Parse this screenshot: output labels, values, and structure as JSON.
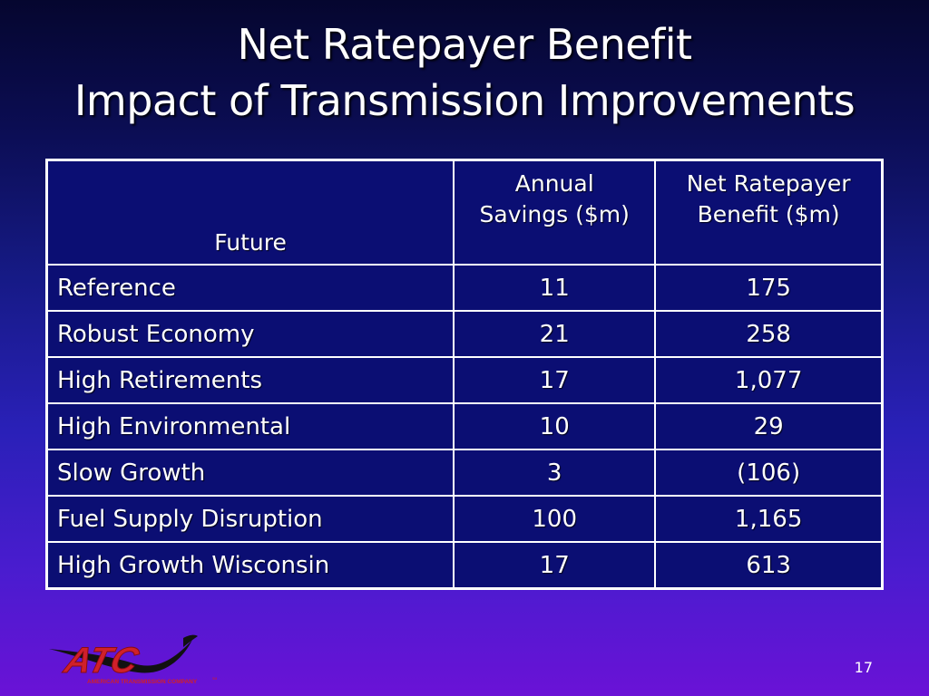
{
  "slide": {
    "title_line1": "Net Ratepayer Benefit",
    "title_line2": "Impact of Transmission Improvements",
    "page_number": "17"
  },
  "table": {
    "headers": {
      "future": "Future",
      "savings_line1": "Annual",
      "savings_line2": "Savings ($m)",
      "benefit_line1": "Net Ratepayer",
      "benefit_line2": "Benefit ($m)"
    },
    "rows": [
      {
        "future": "Reference",
        "savings": "11",
        "benefit": "175"
      },
      {
        "future": "Robust Economy",
        "savings": "21",
        "benefit": "258"
      },
      {
        "future": "High Retirements",
        "savings": "17",
        "benefit": "1,077"
      },
      {
        "future": "High Environmental",
        "savings": "10",
        "benefit": "29"
      },
      {
        "future": "Slow Growth",
        "savings": "3",
        "benefit": "(106)"
      },
      {
        "future": "Fuel Supply Disruption",
        "savings": "100",
        "benefit": "1,165"
      },
      {
        "future": "High Growth Wisconsin",
        "savings": "17",
        "benefit": "613"
      }
    ]
  },
  "logo": {
    "letters": "ATC",
    "company_name": "AMERICAN TRANSMISSION COMPANY",
    "mark": "SM",
    "primary_color": "#d0202a",
    "swoosh_color": "#111111"
  }
}
